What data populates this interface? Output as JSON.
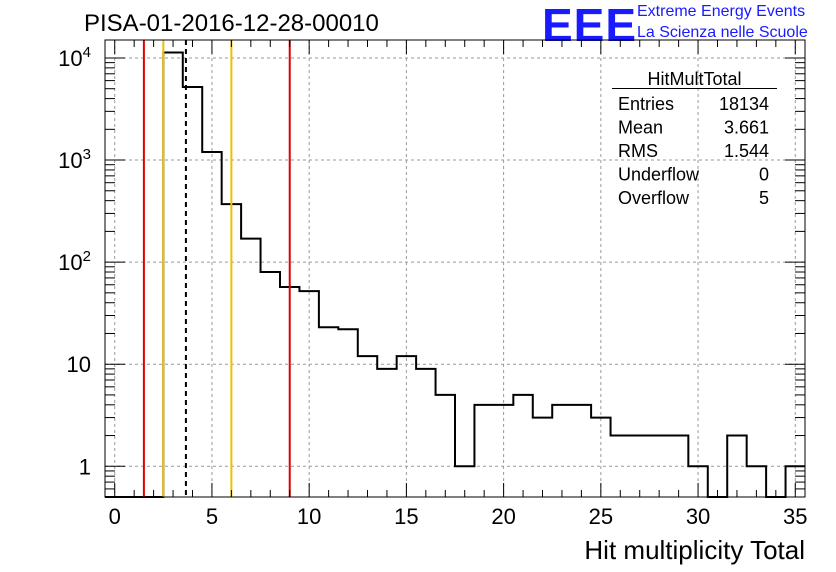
{
  "title": "PISA-01-2016-12-28-00010",
  "brand": {
    "logo_text": "EEE",
    "line1": "Extreme Energy Events",
    "line2": "La Scienza nelle Scuole",
    "color": "#1a1aff"
  },
  "chart_data": {
    "type": "bar",
    "subtype": "step-histogram",
    "xlabel": "Hit multiplicity Total",
    "ylabel": "",
    "xlim": [
      -0.5,
      35.5
    ],
    "ylim": [
      0.5,
      15000
    ],
    "yscale": "log",
    "grid": true,
    "bin_width": 1,
    "bin_low_edges": [
      -0.5,
      0.5,
      1.5,
      2.5,
      3.5,
      4.5,
      5.5,
      6.5,
      7.5,
      8.5,
      9.5,
      10.5,
      11.5,
      12.5,
      13.5,
      14.5,
      15.5,
      16.5,
      17.5,
      18.5,
      19.5,
      20.5,
      21.5,
      22.5,
      23.5,
      24.5,
      25.5,
      26.5,
      27.5,
      28.5,
      29.5,
      30.5,
      31.5,
      32.5,
      33.5,
      34.5
    ],
    "values": [
      0,
      0,
      0,
      11300,
      5200,
      1200,
      370,
      170,
      80,
      57,
      52,
      23,
      22,
      12,
      9,
      12,
      9,
      5,
      1,
      4,
      4,
      5,
      3,
      4,
      4,
      3,
      2,
      2,
      2,
      2,
      1,
      0,
      2,
      1,
      0,
      1
    ],
    "x_ticks": [
      "0",
      "5",
      "10",
      "15",
      "20",
      "25",
      "30",
      "35"
    ],
    "y_ticks": [
      "1",
      "10",
      "10^2",
      "10^3",
      "10^4"
    ],
    "vertical_lines": [
      {
        "x": 1.5,
        "color": "#e00000",
        "style": "solid"
      },
      {
        "x": 2.5,
        "color": "#f0c000",
        "style": "solid"
      },
      {
        "x": 3.661,
        "color": "#000000",
        "style": "dashed"
      },
      {
        "x": 6.0,
        "color": "#f0c000",
        "style": "solid"
      },
      {
        "x": 9.0,
        "color": "#e00000",
        "style": "solid"
      }
    ],
    "stats": {
      "name": "HitMultTotal",
      "rows": [
        {
          "label": "Entries",
          "value": "18134"
        },
        {
          "label": "Mean",
          "value": "3.661"
        },
        {
          "label": "RMS",
          "value": "1.544"
        },
        {
          "label": "Underflow",
          "value": "0"
        },
        {
          "label": "Overflow",
          "value": "5"
        }
      ]
    }
  }
}
